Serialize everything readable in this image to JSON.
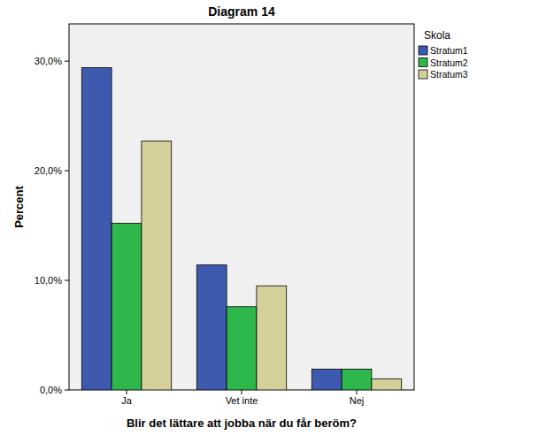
{
  "chart_data": {
    "type": "bar",
    "title": "Diagram 14",
    "x_label": "Blir det lättare att jobba när du får beröm?",
    "y_label": "Percent",
    "legend_title": "Skola",
    "legend": "right",
    "grid": false,
    "categories": [
      "Ja",
      "Vet inte",
      "Nej"
    ],
    "series": [
      {
        "name": "Stratum1",
        "color": "#3d5aae",
        "values": [
          29.4,
          11.4,
          1.9
        ]
      },
      {
        "name": "Stratum2",
        "color": "#2eb84b",
        "values": [
          15.2,
          7.6,
          1.9
        ]
      },
      {
        "name": "Stratum3",
        "color": "#d4d09a",
        "values": [
          22.7,
          9.5,
          1.0
        ]
      }
    ],
    "ylim": [
      0,
      33.4
    ],
    "yticks": [
      {
        "value": 0,
        "label": "0,0%"
      },
      {
        "value": 10,
        "label": "10,0%"
      },
      {
        "value": 20,
        "label": "20,0%"
      },
      {
        "value": 30,
        "label": "30,0%"
      }
    ]
  }
}
